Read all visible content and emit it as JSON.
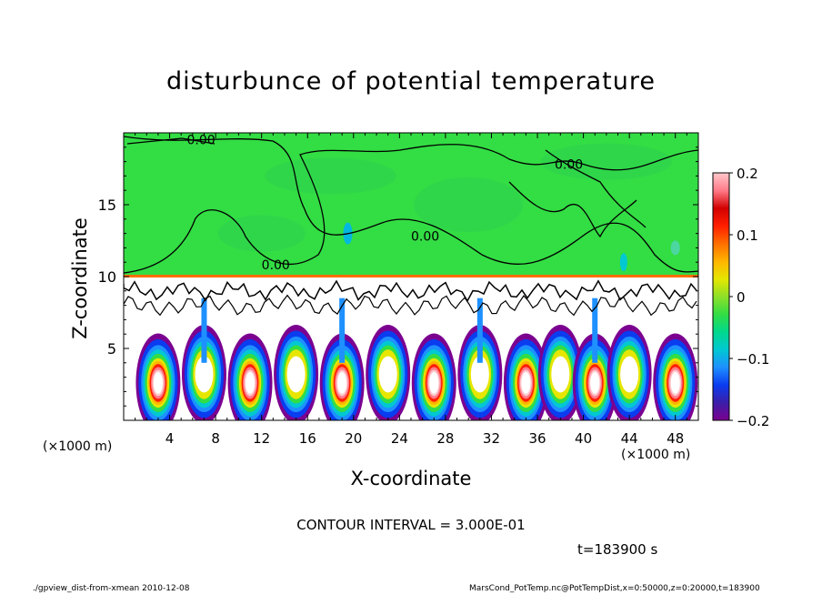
{
  "chart_data": {
    "type": "heatmap",
    "title": "disturbunce of potential temperature",
    "xlabel": "X-coordinate",
    "ylabel": "Z-coordinate",
    "x_unit": "(×1000 m)",
    "z_unit": "(×1000 m)",
    "xlim": [
      0,
      50
    ],
    "zlim": [
      0,
      20
    ],
    "x_ticks": [
      4,
      8,
      12,
      16,
      20,
      24,
      28,
      32,
      36,
      40,
      44,
      48
    ],
    "z_ticks": [
      5,
      10,
      15
    ],
    "colorbar": {
      "ticks": [
        0.2,
        0.1,
        0,
        -0.1,
        -0.2
      ],
      "tick_labels": [
        "0.2",
        "0.1",
        "0",
        "−0.1",
        "−0.2"
      ],
      "range": [
        -0.2,
        0.2
      ]
    },
    "contour_labels": [
      "0.00",
      "0.00",
      "0.00",
      "0.00"
    ],
    "contour_interval": "CONTOUR INTERVAL = 3.000E-01",
    "time": "t=183900 s",
    "upper_region_value": 0,
    "inversion_height": 10,
    "plume_centers_x": [
      3,
      7,
      11,
      15,
      19,
      23,
      27,
      31,
      35,
      38,
      41,
      44,
      48
    ]
  },
  "footer": {
    "left": "./gpview_dist-from-xmean  2010-12-08",
    "right": "MarsCond_PotTemp.nc@PotTempDist,x=0:50000,z=0:20000,t=183900"
  },
  "colors": {
    "background_field": "#33dd44",
    "colorbar_stops": [
      "#7b0090",
      "#3b1ea8",
      "#0a3cf0",
      "#1e90ff",
      "#00c8d2",
      "#00d88c",
      "#33dd44",
      "#8ee028",
      "#e6e600",
      "#ffb400",
      "#ff6e00",
      "#ff1e00",
      "#d20000",
      "#ff7a88",
      "#ffc8cc"
    ]
  }
}
